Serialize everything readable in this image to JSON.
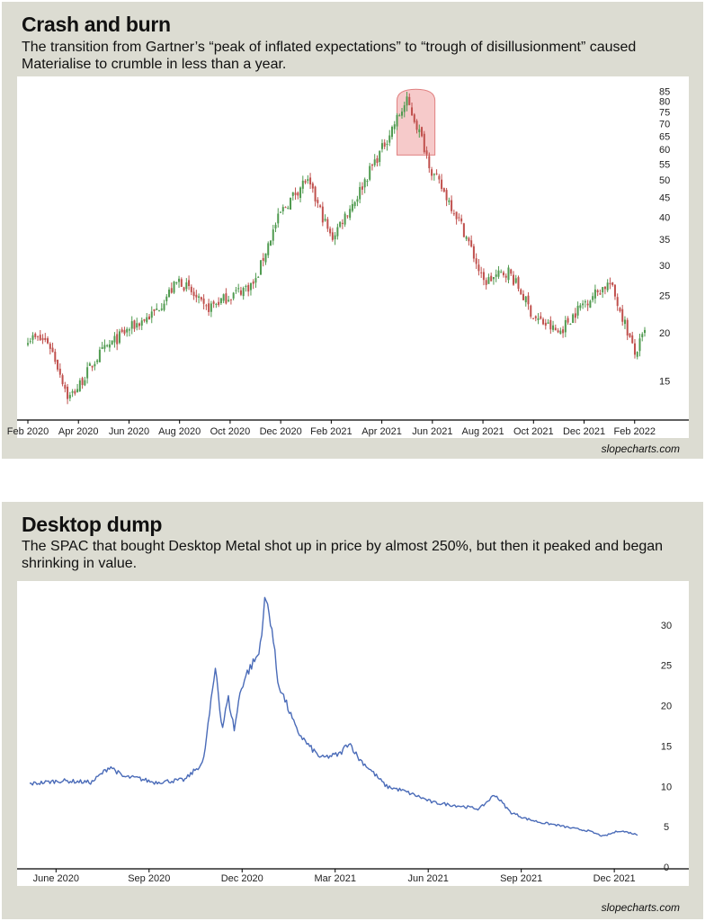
{
  "panels": [
    {
      "title": "Crash and burn",
      "subtitle": "The transition from Gartner’s “peak of inflated expectations” to “trough of disillusionment” caused Materialise to crumble in less than a year.",
      "credit": "slopecharts.com"
    },
    {
      "title": "Desktop dump",
      "subtitle": "The SPAC that bought Desktop Metal shot up in price by almost 250%, but then it peaked and began shrinking in value.",
      "credit": "slopecharts.com"
    }
  ],
  "chart_data": [
    {
      "type": "candlestick",
      "scale": "log",
      "ylim": [
        12,
        88
      ],
      "x_ticks": [
        "Feb 2020",
        "Apr 2020",
        "Jun 2020",
        "Aug 2020",
        "Oct 2020",
        "Dec 2020",
        "Feb 2021",
        "Apr 2021",
        "Jun 2021",
        "Aug 2021",
        "Oct 2021",
        "Dec 2021",
        "Feb 2022"
      ],
      "y_ticks": [
        15,
        20,
        25,
        30,
        35,
        40,
        45,
        50,
        55,
        60,
        65,
        70,
        75,
        80,
        85
      ],
      "up_color": "#4f9a4f",
      "down_color": "#c0504d",
      "highlight_color": "#f3b8b8",
      "series": {
        "t": [
          0,
          0.4,
          0.8,
          1.0,
          1.4,
          1.7,
          2.0,
          2.5,
          3.0,
          3.5,
          4.0,
          4.5,
          5.0,
          5.5,
          6.0,
          6.5,
          7.0,
          7.5,
          8.0,
          8.5,
          9.0,
          9.5,
          10.0,
          10.5,
          11.0,
          11.5,
          12.0,
          12.2
        ],
        "close": [
          19.5,
          19.0,
          13.5,
          14.5,
          17.5,
          19.0,
          20.5,
          22.5,
          27.5,
          23.0,
          25.0,
          27.0,
          41.0,
          50.0,
          35.0,
          45.0,
          60.0,
          80.0,
          52.0,
          40.0,
          27.0,
          29.0,
          22.0,
          20.0,
          24.0,
          27.0,
          17.5,
          20.0
        ]
      }
    },
    {
      "type": "line",
      "ylim": [
        0,
        35
      ],
      "x_ticks": [
        "June 2020",
        "Sep 2020",
        "Dec 2020",
        "Mar 2021",
        "Jun 2021",
        "Sep 2021",
        "Dec 2021"
      ],
      "y_ticks": [
        0,
        5,
        10,
        15,
        20,
        25,
        30
      ],
      "line_color": "#4a6bb8",
      "series": {
        "t": [
          0,
          0.5,
          1.0,
          1.5,
          2.0,
          2.6,
          3.0,
          3.5,
          4.0,
          5.0,
          5.6,
          6.0,
          6.2,
          6.4,
          6.6,
          6.8,
          7.0,
          7.4,
          7.6,
          7.8,
          8.0,
          8.3,
          8.6,
          9.0,
          9.4,
          10.0,
          10.3,
          10.6,
          11.0,
          11.5,
          12.0,
          12.5,
          13.0,
          14.0,
          14.5,
          15.0,
          15.5,
          16.0,
          16.5,
          17.0,
          17.5,
          18.0,
          18.5,
          19.0,
          19.3,
          19.6
        ],
        "values": [
          10.3,
          10.5,
          10.7,
          10.6,
          10.5,
          12.5,
          11.2,
          11.0,
          10.5,
          10.8,
          13.0,
          25.0,
          17.0,
          21.0,
          17.0,
          22.0,
          24.0,
          26.5,
          33.5,
          30.0,
          23.0,
          20.0,
          17.0,
          15.0,
          13.5,
          14.0,
          15.5,
          13.5,
          12.0,
          10.0,
          9.5,
          8.8,
          8.0,
          7.5,
          7.2,
          9.0,
          6.8,
          6.0,
          5.5,
          5.2,
          4.8,
          4.5,
          3.8,
          4.5,
          4.3,
          4.0
        ]
      }
    }
  ]
}
